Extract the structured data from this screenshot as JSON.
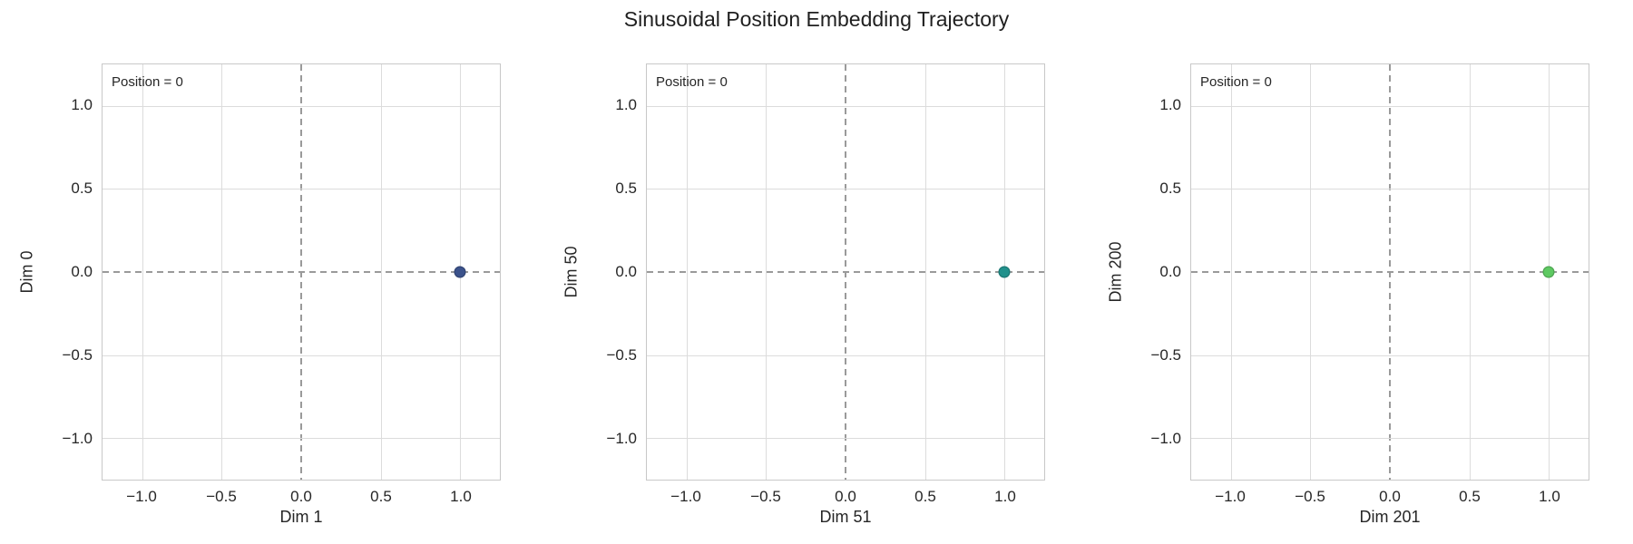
{
  "figure": {
    "title": "Sinusoidal Position Embedding Trajectory"
  },
  "chart_data": [
    {
      "type": "scatter",
      "xlabel": "Dim 1",
      "ylabel": "Dim 0",
      "annotation": "Position = 0",
      "points": [
        {
          "x": 1.0,
          "y": 0.0
        }
      ],
      "point_color": "#3b528b",
      "xlim": [
        -1.25,
        1.25
      ],
      "ylim": [
        -1.25,
        1.25
      ],
      "xtick_values": [
        -1.0,
        -0.5,
        0.0,
        0.5,
        1.0
      ],
      "xtick_labels": [
        "−1.0",
        "−0.5",
        "0.0",
        "0.5",
        "1.0"
      ],
      "ytick_values": [
        -1.0,
        -0.5,
        0.0,
        0.5,
        1.0
      ],
      "ytick_labels": [
        "−1.0",
        "−0.5",
        "0.0",
        "0.5",
        "1.0"
      ],
      "grid": true,
      "zero_lines_dashed": true,
      "legend": "none"
    },
    {
      "type": "scatter",
      "xlabel": "Dim 51",
      "ylabel": "Dim 50",
      "annotation": "Position = 0",
      "points": [
        {
          "x": 1.0,
          "y": 0.0
        }
      ],
      "point_color": "#21918c",
      "xlim": [
        -1.25,
        1.25
      ],
      "ylim": [
        -1.25,
        1.25
      ],
      "xtick_values": [
        -1.0,
        -0.5,
        0.0,
        0.5,
        1.0
      ],
      "xtick_labels": [
        "−1.0",
        "−0.5",
        "0.0",
        "0.5",
        "1.0"
      ],
      "ytick_values": [
        -1.0,
        -0.5,
        0.0,
        0.5,
        1.0
      ],
      "ytick_labels": [
        "−1.0",
        "−0.5",
        "0.0",
        "0.5",
        "1.0"
      ],
      "grid": true,
      "zero_lines_dashed": true,
      "legend": "none"
    },
    {
      "type": "scatter",
      "xlabel": "Dim 201",
      "ylabel": "Dim 200",
      "annotation": "Position = 0",
      "points": [
        {
          "x": 1.0,
          "y": 0.0
        }
      ],
      "point_color": "#5ec962",
      "xlim": [
        -1.25,
        1.25
      ],
      "ylim": [
        -1.25,
        1.25
      ],
      "xtick_values": [
        -1.0,
        -0.5,
        0.0,
        0.5,
        1.0
      ],
      "xtick_labels": [
        "−1.0",
        "−0.5",
        "0.0",
        "0.5",
        "1.0"
      ],
      "ytick_values": [
        -1.0,
        -0.5,
        0.0,
        0.5,
        1.0
      ],
      "ytick_labels": [
        "−1.0",
        "−0.5",
        "0.0",
        "0.5",
        "1.0"
      ],
      "grid": true,
      "zero_lines_dashed": true,
      "legend": "none"
    }
  ]
}
